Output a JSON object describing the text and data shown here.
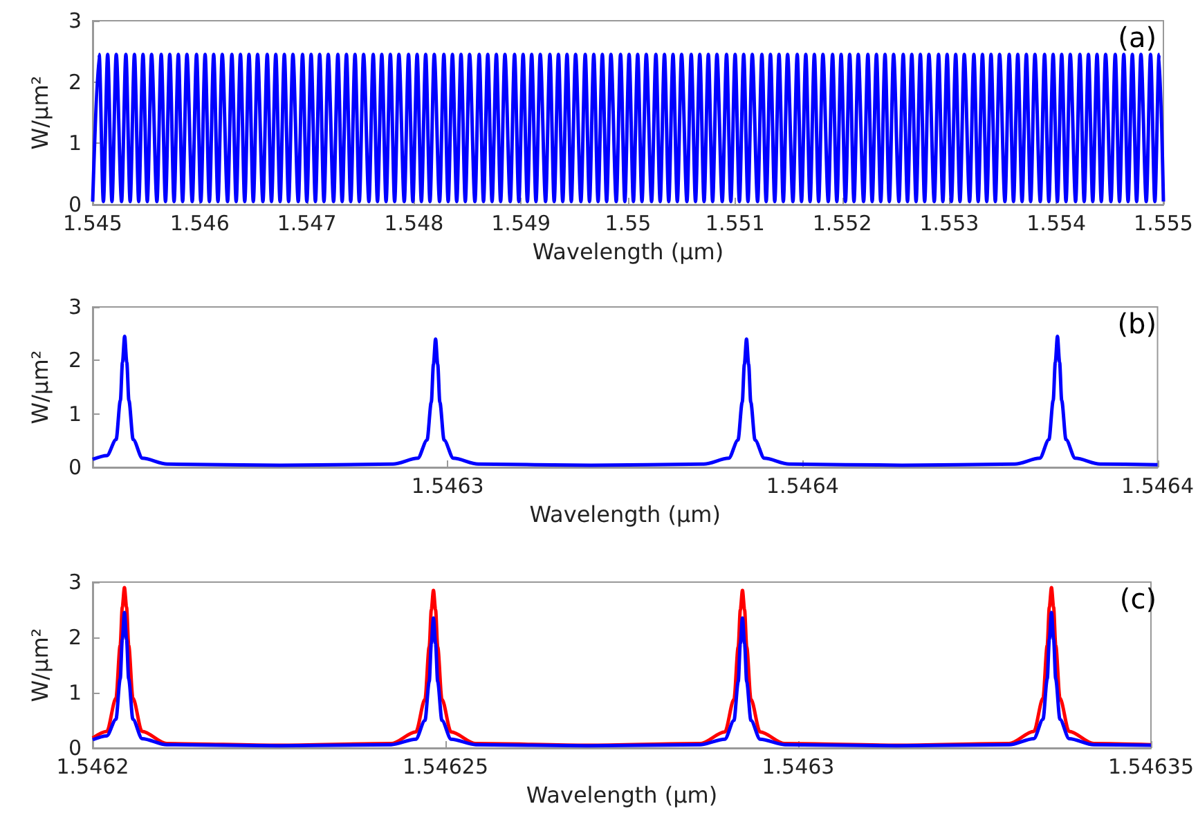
{
  "chart_data": [
    {
      "type": "line",
      "xlabel": "Wavelength (μm)",
      "ylabel": "W/μm²",
      "annotations": [
        "(a)"
      ],
      "xlim": [
        1.545,
        1.555
      ],
      "ylim": [
        0,
        3
      ],
      "yticks": [
        0,
        1,
        2,
        3
      ],
      "xticks": [
        1.545,
        1.546,
        1.547,
        1.548,
        1.549,
        1.55,
        1.551,
        1.552,
        1.553,
        1.554,
        1.555
      ],
      "x": [
        1.545,
        1.54506,
        1.5451,
        1.54514,
        1.54518,
        1.54522,
        1.54527,
        1.54531,
        1.54535,
        1.54539,
        1.54543,
        1.54547,
        1.54551,
        1.54555,
        1.5456,
        1.54564,
        1.54568,
        1.54572,
        1.54576,
        1.5458,
        1.54584,
        1.54588,
        1.54593,
        1.54597,
        1.54601,
        1.54605,
        1.54609,
        1.54613,
        1.54617,
        1.54621,
        1.54626,
        1.5463,
        1.54634,
        1.54638,
        1.54642,
        1.54646,
        1.5465,
        1.54654,
        1.54659,
        1.54663,
        1.54667,
        1.54671,
        1.54675,
        1.54679,
        1.54683,
        1.54687,
        1.54692,
        1.54696,
        1.547,
        1.54704,
        1.54708,
        1.54712,
        1.54716,
        1.5472,
        1.54725,
        1.54729,
        1.54733,
        1.54737,
        1.54741,
        1.54745,
        1.54749,
        1.54753,
        1.54758,
        1.54762,
        1.54766,
        1.5477,
        1.54774,
        1.54778,
        1.54782,
        1.54786,
        1.54791,
        1.54795,
        1.54799,
        1.54803,
        1.54807,
        1.54811,
        1.54815,
        1.54819,
        1.54824,
        1.54828,
        1.54832,
        1.54836,
        1.5484,
        1.54844,
        1.54848,
        1.54852,
        1.54857,
        1.54861,
        1.54865,
        1.54869,
        1.54873,
        1.54877,
        1.54881,
        1.54885,
        1.5489,
        1.54894,
        1.54898,
        1.54902,
        1.54906,
        1.5491,
        1.54914,
        1.54918,
        1.54923,
        1.54927,
        1.54931,
        1.54935,
        1.54939,
        1.54943,
        1.54947,
        1.54951,
        1.54956,
        1.5496,
        1.54964,
        1.54968,
        1.54972,
        1.54976,
        1.5498,
        1.54984,
        1.54989,
        1.54993,
        1.54997,
        1.55001,
        1.55005,
        1.55009,
        1.55013,
        1.55017,
        1.55022,
        1.55026,
        1.5503,
        1.55034,
        1.55038,
        1.55042,
        1.55046,
        1.5505,
        1.55055,
        1.55059,
        1.55063,
        1.55067,
        1.55071,
        1.55075,
        1.55079,
        1.55083,
        1.55088,
        1.55092,
        1.55096,
        1.551,
        1.55104,
        1.55108,
        1.55112,
        1.55116,
        1.55121,
        1.55125,
        1.55129,
        1.55133,
        1.55137,
        1.55141,
        1.55145,
        1.55149,
        1.55154,
        1.55158,
        1.55162,
        1.55166,
        1.5517,
        1.55174,
        1.55178,
        1.55182,
        1.55187,
        1.55191,
        1.55195,
        1.55199,
        1.55203,
        1.55207,
        1.55211,
        1.55215,
        1.5522,
        1.55224,
        1.55228,
        1.55232,
        1.55236,
        1.5524,
        1.55244,
        1.55248,
        1.55253,
        1.55257,
        1.55261,
        1.55265,
        1.55269,
        1.55273,
        1.55277,
        1.55281,
        1.55286,
        1.5529,
        1.55294,
        1.55298,
        1.55302,
        1.55306,
        1.5531,
        1.55314,
        1.55319,
        1.55323,
        1.55327,
        1.55331,
        1.55335,
        1.55339,
        1.55343,
        1.55347,
        1.55352,
        1.55356,
        1.5536,
        1.55364,
        1.55368,
        1.55372,
        1.55376,
        1.5538,
        1.55385,
        1.55389,
        1.55393,
        1.55397,
        1.55401,
        1.55405,
        1.55409,
        1.55413,
        1.55418,
        1.55422,
        1.55426,
        1.5543,
        1.55434,
        1.55438,
        1.55442,
        1.55446,
        1.55451,
        1.55455,
        1.55459,
        1.55463,
        1.55467,
        1.55471,
        1.55475,
        1.55479,
        1.55484,
        1.55488,
        1.55492,
        1.55496,
        1.555
      ],
      "series": [
        {
          "color": "#0000ff",
          "values": [
            0.05,
            2.45,
            0.05,
            2.45,
            0.05,
            2.45,
            0.05,
            2.45,
            0.05,
            2.45,
            0.05,
            2.45,
            0.05,
            2.45,
            0.05,
            2.45,
            0.05,
            2.45,
            0.05,
            2.45,
            0.05,
            2.45,
            0.05,
            2.45,
            0.05,
            2.45,
            0.05,
            2.45,
            0.05,
            2.45,
            0.05,
            2.45,
            0.05,
            2.45,
            0.05,
            2.45,
            0.05,
            2.45,
            0.05,
            2.45,
            0.05,
            2.45,
            0.05,
            2.45,
            0.05,
            2.45,
            0.05,
            2.45,
            0.05,
            2.45,
            0.05,
            2.45,
            0.05,
            2.45,
            0.05,
            2.45,
            0.05,
            2.45,
            0.05,
            2.45,
            0.05,
            2.45,
            0.05,
            2.45,
            0.05,
            2.45,
            0.05,
            2.45,
            0.05,
            2.45,
            0.05,
            2.45,
            0.05,
            2.45,
            0.05,
            2.45,
            0.05,
            2.45,
            0.05,
            2.45,
            0.05,
            2.45,
            0.05,
            2.45,
            0.05,
            2.45,
            0.05,
            2.45,
            0.05,
            2.45,
            0.05,
            2.45,
            0.05,
            2.45,
            0.05,
            2.45,
            0.05,
            2.45,
            0.05,
            2.45,
            0.05,
            2.45,
            0.05,
            2.45,
            0.05,
            2.45,
            0.05,
            2.45,
            0.05,
            2.45,
            0.05,
            2.45,
            0.05,
            2.45,
            0.05,
            2.45,
            0.05,
            2.45,
            0.05,
            2.45,
            0.05,
            2.45,
            0.05,
            2.45,
            0.05,
            2.45,
            0.05,
            2.45,
            0.05,
            2.45,
            0.05,
            2.45,
            0.05,
            2.45,
            0.05,
            2.45,
            0.05,
            2.45,
            0.05,
            2.45,
            0.05,
            2.45,
            0.05,
            2.45,
            0.05,
            2.45,
            0.05,
            2.45,
            0.05,
            2.45,
            0.05,
            2.45,
            0.05,
            2.45,
            0.05,
            2.45,
            0.05,
            2.45,
            0.05,
            2.45,
            0.05,
            2.45,
            0.05,
            2.45,
            0.05,
            2.45,
            0.05,
            2.45,
            0.05,
            2.45,
            0.05,
            2.45,
            0.05,
            2.45,
            0.05,
            2.45,
            0.05,
            2.45,
            0.05,
            2.45,
            0.05,
            2.45,
            0.05,
            2.45,
            0.05,
            2.45,
            0.05,
            2.45,
            0.05,
            2.45,
            0.05,
            2.45,
            0.05,
            2.45,
            0.05,
            2.45,
            0.05,
            2.45,
            0.05,
            2.45,
            0.05,
            2.45,
            0.05,
            2.45,
            0.05,
            2.45,
            0.05,
            2.45,
            0.05,
            2.45,
            0.05,
            2.45,
            0.05,
            2.45,
            0.05,
            2.45,
            0.05,
            2.45,
            0.05,
            2.45,
            0.05,
            2.45,
            0.05,
            2.45,
            0.05,
            2.45,
            0.05,
            2.45,
            0.05,
            2.45,
            0.05,
            2.45,
            0.05,
            2.45,
            0.05,
            2.45,
            0.05,
            2.45,
            0.05,
            2.45,
            0.05,
            2.45,
            0.05
          ]
        }
      ]
    },
    {
      "type": "line",
      "xlabel": "Wavelength (μm)",
      "ylabel": "W/μm²",
      "annotations": [
        "(b)"
      ],
      "xlim": [
        1.54625,
        1.5464
      ],
      "ylim": [
        0,
        3
      ],
      "yticks": [
        0,
        1,
        2,
        3
      ],
      "xticks": [
        1.5463,
        {
          "value": 1.54635,
          "label": "1.5464"
        },
        1.5464
      ],
      "x": [
        1.54625,
        1.546252,
        1.5462533,
        1.5462539,
        1.5462542,
        1.5462545,
        1.5462548,
        1.5462551,
        1.5462557,
        1.546257,
        1.5462605,
        1.5462764,
        1.5462923,
        1.5462958,
        1.5462971,
        1.5462977,
        1.546298,
        1.5462983,
        1.5462986,
        1.5462989,
        1.5462995,
        1.5463008,
        1.5463043,
        1.5463202,
        1.5463361,
        1.5463396,
        1.5463409,
        1.5463415,
        1.5463418,
        1.5463421,
        1.5463424,
        1.5463427,
        1.5463433,
        1.5463446,
        1.5463481,
        1.546364,
        1.5463799,
        1.5463834,
        1.5463847,
        1.5463853,
        1.5463856,
        1.5463859,
        1.5463862,
        1.5463865,
        1.5463871,
        1.5463884,
        1.5463919,
        1.5464
      ],
      "series": [
        {
          "color": "#0000ff",
          "values": [
            0.15,
            0.22,
            0.52,
            1.25,
            1.97,
            2.45,
            1.97,
            1.25,
            0.52,
            0.17,
            0.06,
            0.04,
            0.06,
            0.17,
            0.51,
            1.22,
            1.93,
            2.4,
            1.93,
            1.22,
            0.51,
            0.17,
            0.06,
            0.04,
            0.06,
            0.17,
            0.51,
            1.22,
            1.93,
            2.4,
            1.93,
            1.22,
            0.51,
            0.17,
            0.06,
            0.04,
            0.06,
            0.17,
            0.52,
            1.25,
            1.97,
            2.45,
            1.97,
            1.25,
            0.52,
            0.17,
            0.06,
            0.05
          ]
        }
      ]
    },
    {
      "type": "line",
      "xlabel": "Wavelength (μm)",
      "ylabel": "W/μm²",
      "annotations": [
        "(c)"
      ],
      "xlim": [
        1.5462,
        1.54635
      ],
      "ylim": [
        0,
        3
      ],
      "yticks": [
        0,
        1,
        2,
        3
      ],
      "xticks": [
        1.5462,
        1.54625,
        1.5463,
        1.54635
      ],
      "x": [
        1.5462,
        1.546202,
        1.5462033,
        1.5462039,
        1.5462042,
        1.5462045,
        1.5462048,
        1.5462051,
        1.5462057,
        1.546207,
        1.5462105,
        1.5462264,
        1.5462423,
        1.5462458,
        1.5462471,
        1.5462477,
        1.546248,
        1.5462483,
        1.5462486,
        1.5462489,
        1.5462495,
        1.5462508,
        1.5462543,
        1.5462702,
        1.5462861,
        1.5462896,
        1.5462909,
        1.5462915,
        1.5462918,
        1.5462921,
        1.5462924,
        1.5462927,
        1.5462933,
        1.5462946,
        1.5462981,
        1.546314,
        1.5463299,
        1.5463334,
        1.5463347,
        1.5463353,
        1.5463356,
        1.5463359,
        1.5463362,
        1.5463365,
        1.5463371,
        1.5463384,
        1.5463419,
        1.54635
      ],
      "series": [
        {
          "color": "#ff0000",
          "values": [
            0.18,
            0.3,
            0.9,
            1.86,
            2.55,
            2.9,
            2.55,
            1.86,
            0.9,
            0.3,
            0.08,
            0.05,
            0.08,
            0.29,
            0.88,
            1.83,
            2.5,
            2.85,
            2.5,
            1.83,
            0.88,
            0.29,
            0.08,
            0.05,
            0.08,
            0.29,
            0.88,
            1.83,
            2.5,
            2.85,
            2.5,
            1.83,
            0.88,
            0.29,
            0.08,
            0.05,
            0.08,
            0.3,
            0.9,
            1.86,
            2.55,
            2.9,
            2.55,
            1.86,
            0.9,
            0.3,
            0.08,
            0.06
          ]
        },
        {
          "color": "#0000ff",
          "values": [
            0.15,
            0.22,
            0.52,
            1.25,
            1.97,
            2.45,
            1.97,
            1.25,
            0.52,
            0.17,
            0.06,
            0.04,
            0.06,
            0.16,
            0.5,
            1.2,
            1.89,
            2.35,
            1.89,
            1.2,
            0.5,
            0.16,
            0.06,
            0.04,
            0.06,
            0.16,
            0.5,
            1.2,
            1.89,
            2.35,
            1.89,
            1.2,
            0.5,
            0.16,
            0.06,
            0.04,
            0.06,
            0.17,
            0.52,
            1.25,
            1.97,
            2.45,
            1.97,
            1.25,
            0.52,
            0.17,
            0.06,
            0.05
          ]
        }
      ]
    }
  ]
}
